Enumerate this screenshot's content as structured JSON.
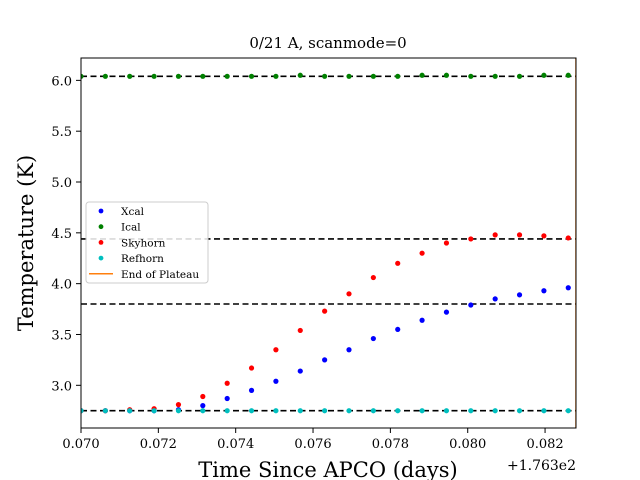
{
  "chart_data": {
    "type": "scatter",
    "title": "0/21 A, scanmode=0",
    "xlabel": "Time Since APCO (days)",
    "ylabel": "Temperature (K)",
    "x_offset_label": "+1.763e2",
    "xlim": [
      0.07,
      0.0828
    ],
    "ylim": [
      2.58,
      6.22
    ],
    "x_ticks": [
      0.07,
      0.072,
      0.074,
      0.076,
      0.078,
      0.08,
      0.082
    ],
    "x_tick_labels": [
      "0.070",
      "0.072",
      "0.074",
      "0.076",
      "0.078",
      "0.080",
      "0.082"
    ],
    "y_ticks": [
      3.0,
      3.5,
      4.0,
      4.5,
      5.0,
      5.5,
      6.0
    ],
    "y_tick_labels": [
      "3.0",
      "3.5",
      "4.0",
      "4.5",
      "5.0",
      "5.5",
      "6.0"
    ],
    "grid": false,
    "legend_position": "center-left",
    "x": [
      0.07,
      0.07063,
      0.07126,
      0.07189,
      0.07252,
      0.07315,
      0.07378,
      0.07441,
      0.07504,
      0.07567,
      0.0763,
      0.07693,
      0.07756,
      0.07819,
      0.07882,
      0.07945,
      0.08008,
      0.08071,
      0.08134,
      0.08197,
      0.0826
    ],
    "series": [
      {
        "name": "Xcal",
        "color": "#0000ff",
        "values": [
          2.75,
          2.75,
          2.75,
          2.75,
          2.76,
          2.8,
          2.87,
          2.95,
          3.04,
          3.14,
          3.25,
          3.35,
          3.46,
          3.55,
          3.64,
          3.72,
          3.79,
          3.85,
          3.89,
          3.93,
          3.96
        ]
      },
      {
        "name": "Ical",
        "color": "#008000",
        "values": [
          6.04,
          6.04,
          6.04,
          6.04,
          6.04,
          6.04,
          6.04,
          6.04,
          6.04,
          6.05,
          6.04,
          6.04,
          6.04,
          6.04,
          6.05,
          6.05,
          6.04,
          6.04,
          6.04,
          6.05,
          6.05
        ]
      },
      {
        "name": "Skyhorn",
        "color": "#ff0000",
        "values": [
          2.75,
          2.75,
          2.76,
          2.77,
          2.81,
          2.89,
          3.02,
          3.17,
          3.35,
          3.54,
          3.73,
          3.9,
          4.06,
          4.2,
          4.3,
          4.4,
          4.44,
          4.48,
          4.48,
          4.47,
          4.45
        ]
      },
      {
        "name": "Refhorn",
        "color": "#00bfbf",
        "values": [
          2.75,
          2.75,
          2.75,
          2.75,
          2.75,
          2.75,
          2.75,
          2.75,
          2.75,
          2.75,
          2.75,
          2.75,
          2.75,
          2.75,
          2.75,
          2.75,
          2.75,
          2.75,
          2.75,
          2.75,
          2.75
        ]
      }
    ],
    "plateau_lines": [
      6.04,
      4.44,
      3.8,
      2.75
    ],
    "end_of_plateau": {
      "name": "End of Plateau",
      "x": 0.0828,
      "color": "#ff7f0e"
    }
  }
}
